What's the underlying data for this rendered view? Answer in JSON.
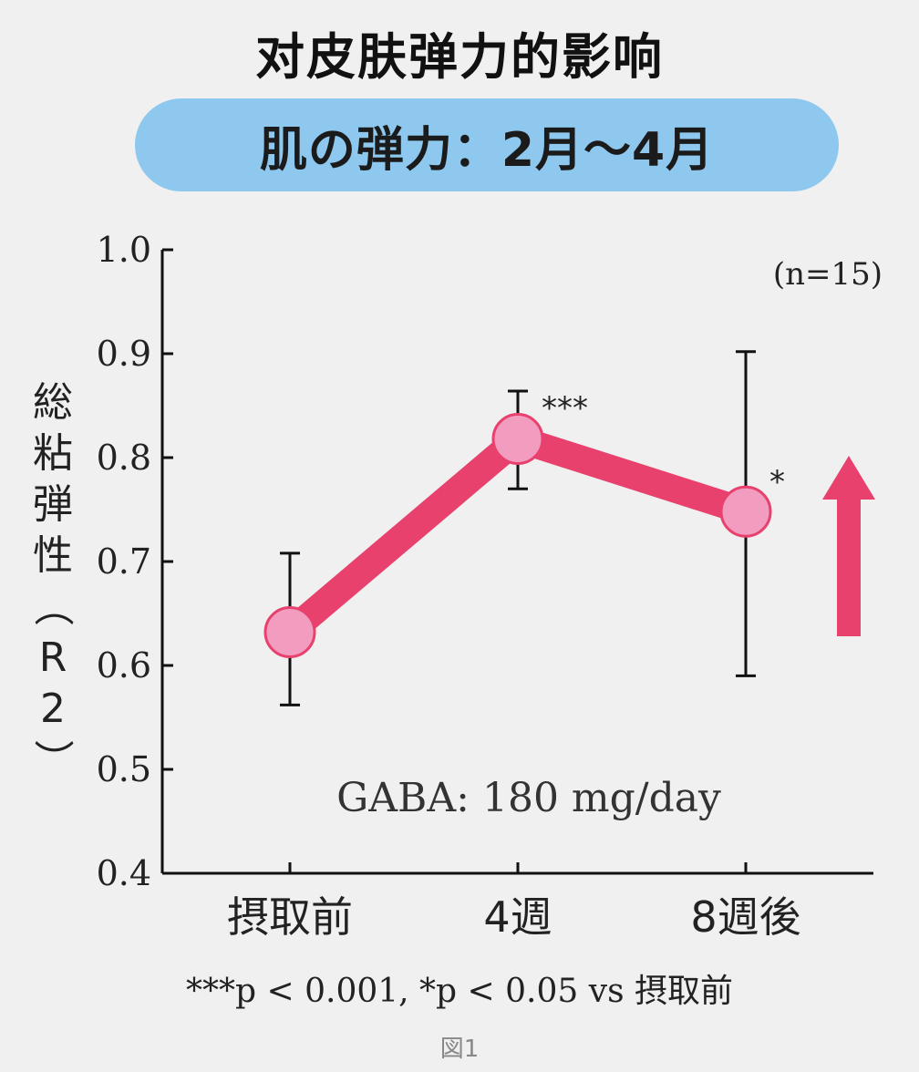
{
  "title": "对皮肤弹力的影响",
  "banner": "肌の弾力：2月～4月",
  "footnote": "***p < 0.001, *p < 0.05 vs 摂取前",
  "caption": "図1",
  "colors": {
    "line": "#e8416e",
    "marker_fill": "#f29cc0",
    "marker_stroke": "#e8416e",
    "banner": "#8ec8ee",
    "arrow": "#e8416e",
    "axis": "#111111"
  },
  "chart_data": {
    "type": "line",
    "title": "",
    "ylabel": "総粘弾性（R2）",
    "xlabel": "",
    "categories": [
      "摂取前",
      "4週",
      "8週後"
    ],
    "series": [
      {
        "values": [
          0.632,
          0.818,
          0.748
        ],
        "error_low": [
          0.562,
          0.77,
          0.59
        ],
        "error_high": [
          0.708,
          0.864,
          0.902
        ]
      }
    ],
    "significance": [
      "",
      "***",
      "*"
    ],
    "ylim": [
      0.4,
      1.0
    ],
    "yticks": [
      "0.4",
      "0.5",
      "0.6",
      "0.7",
      "0.8",
      "0.9",
      "1.0"
    ],
    "annotations": {
      "n": "(n=15)",
      "dose": "GABA: 180 mg/day"
    },
    "trend_arrow": "up",
    "grid": false,
    "legend": "none"
  }
}
